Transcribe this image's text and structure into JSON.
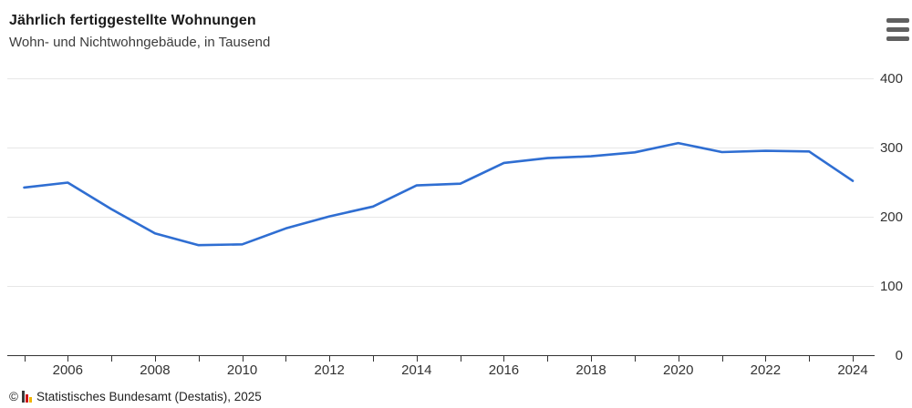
{
  "header": {
    "title": "Jährlich fertiggestellte Wohnungen",
    "subtitle": "Wohn- und Nichtwohngebäude, in Tausend"
  },
  "menu": {
    "icon": "hamburger-menu-icon",
    "tooltip": ""
  },
  "chart_data": {
    "type": "line",
    "title": "Jährlich fertiggestellte Wohnungen",
    "subtitle": "Wohn- und Nichtwohngebäude, in Tausend",
    "xlabel": "",
    "ylabel": "",
    "x": [
      2005,
      2006,
      2007,
      2008,
      2009,
      2010,
      2011,
      2012,
      2013,
      2014,
      2015,
      2016,
      2017,
      2018,
      2019,
      2020,
      2021,
      2022,
      2023,
      2024
    ],
    "series": [
      {
        "name": "Fertiggestellte Wohnungen (Tausend)",
        "values": [
          242.3,
          249.4,
          211.0,
          176.0,
          159.0,
          160.1,
          183.1,
          200.5,
          214.8,
          245.3,
          247.7,
          277.7,
          284.8,
          287.4,
          293.0,
          306.4,
          293.4,
          295.3,
          294.4,
          251.9
        ]
      }
    ],
    "ylim": [
      0,
      400
    ],
    "yticks": [
      0,
      100,
      200,
      300,
      400
    ],
    "xtick_labels": [
      2006,
      2008,
      2010,
      2012,
      2014,
      2016,
      2018,
      2020,
      2022,
      2024
    ],
    "grid": true,
    "legend": false,
    "colors": {
      "line": "#2f6ed2",
      "grid": "#e7e7e7",
      "axis": "#333333",
      "tick_text": "#333333"
    }
  },
  "footer": {
    "copyright_symbol": "©",
    "source": "Statistisches Bundesamt (Destatis), 2025"
  }
}
